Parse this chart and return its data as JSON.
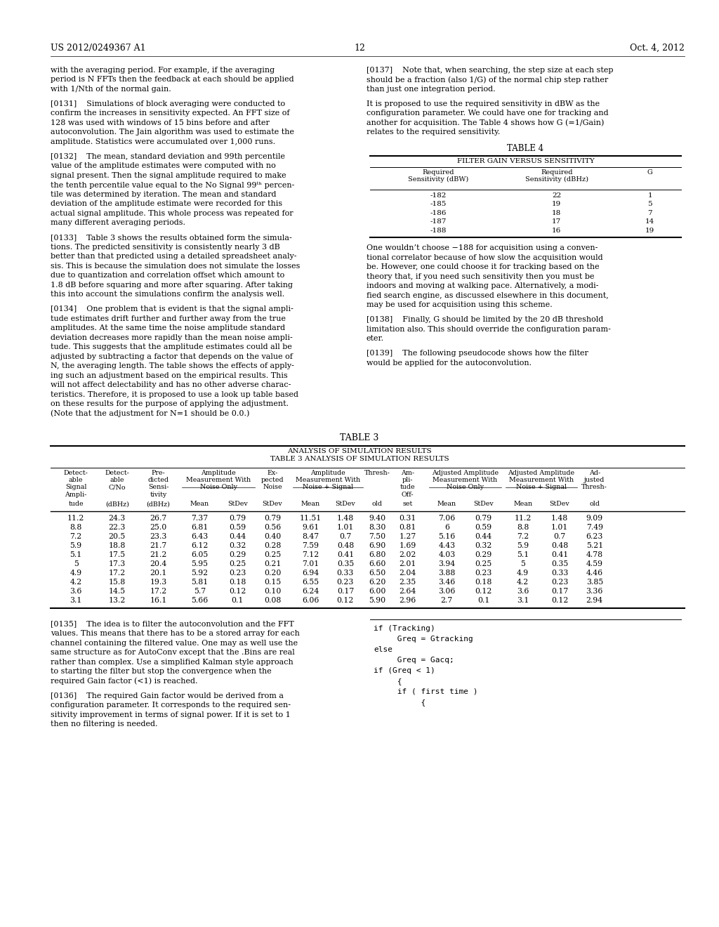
{
  "background_color": "#ffffff",
  "header_left": "US 2012/0249367 A1",
  "header_center": "12",
  "header_right": "Oct. 4, 2012",
  "table4_title": "TABLE 4",
  "table4_subtitle": "FILTER GAIN VERSUS SENSITIVITY",
  "table4_col1_header": "Required\nSensitivity (dBW)",
  "table4_col2_header": "Required\nSensitivity (dBHz)",
  "table4_col3_header": "G",
  "table4_rows": [
    [
      "-182",
      "22",
      "1"
    ],
    [
      "-185",
      "19",
      "5"
    ],
    [
      "-186",
      "18",
      "7"
    ],
    [
      "-187",
      "17",
      "14"
    ],
    [
      "-188",
      "16",
      "19"
    ]
  ],
  "table3_title": "TABLE 3",
  "table3_subtitle1": "ANALYSIS OF SIMULATION RESULTS",
  "table3_subtitle2": "TABLE 3 ANALYSIS OF SIMULATION RESULTS",
  "table3_data": [
    [
      "11.2",
      "24.3",
      "26.7",
      "7.37",
      "0.79",
      "0.79",
      "11.51",
      "1.48",
      "9.40",
      "0.31",
      "7.06",
      "0.79",
      "11.2",
      "1.48",
      "9.09"
    ],
    [
      "8.8",
      "22.3",
      "25.0",
      "6.81",
      "0.59",
      "0.56",
      "9.61",
      "1.01",
      "8.30",
      "0.81",
      "6",
      "0.59",
      "8.8",
      "1.01",
      "7.49"
    ],
    [
      "7.2",
      "20.5",
      "23.3",
      "6.43",
      "0.44",
      "0.40",
      "8.47",
      "0.7",
      "7.50",
      "1.27",
      "5.16",
      "0.44",
      "7.2",
      "0.7",
      "6.23"
    ],
    [
      "5.9",
      "18.8",
      "21.7",
      "6.12",
      "0.32",
      "0.28",
      "7.59",
      "0.48",
      "6.90",
      "1.69",
      "4.43",
      "0.32",
      "5.9",
      "0.48",
      "5.21"
    ],
    [
      "5.1",
      "17.5",
      "21.2",
      "6.05",
      "0.29",
      "0.25",
      "7.12",
      "0.41",
      "6.80",
      "2.02",
      "4.03",
      "0.29",
      "5.1",
      "0.41",
      "4.78"
    ],
    [
      "5",
      "17.3",
      "20.4",
      "5.95",
      "0.25",
      "0.21",
      "7.01",
      "0.35",
      "6.60",
      "2.01",
      "3.94",
      "0.25",
      "5",
      "0.35",
      "4.59"
    ],
    [
      "4.9",
      "17.2",
      "20.1",
      "5.92",
      "0.23",
      "0.20",
      "6.94",
      "0.33",
      "6.50",
      "2.04",
      "3.88",
      "0.23",
      "4.9",
      "0.33",
      "4.46"
    ],
    [
      "4.2",
      "15.8",
      "19.3",
      "5.81",
      "0.18",
      "0.15",
      "6.55",
      "0.23",
      "6.20",
      "2.35",
      "3.46",
      "0.18",
      "4.2",
      "0.23",
      "3.85"
    ],
    [
      "3.6",
      "14.5",
      "17.2",
      "5.7",
      "0.12",
      "0.10",
      "6.24",
      "0.17",
      "6.00",
      "2.64",
      "3.06",
      "0.12",
      "3.6",
      "0.17",
      "3.36"
    ],
    [
      "3.1",
      "13.2",
      "16.1",
      "5.66",
      "0.1",
      "0.08",
      "6.06",
      "0.12",
      "5.90",
      "2.96",
      "2.7",
      "0.1",
      "3.1",
      "0.12",
      "2.94"
    ]
  ],
  "left_col_top": [
    "with the averaging period. For example, if the averaging",
    "period is N FFTs then the feedback at each should be applied",
    "with 1/Nth of the normal gain.",
    "",
    "[0131]    Simulations of block averaging were conducted to",
    "confirm the increases in sensitivity expected. An FFT size of",
    "128 was used with windows of 15 bins before and after",
    "autoconvolution. The Jain algorithm was used to estimate the",
    "amplitude. Statistics were accumulated over 1,000 runs.",
    "",
    "[0132]    The mean, standard deviation and 99th percentile",
    "value of the amplitude estimates were computed with no",
    "signal present. Then the signal amplitude required to make",
    "the tenth percentile value equal to the No Signal 99ᵗʰ percen-",
    "tile was determined by iteration. The mean and standard",
    "deviation of the amplitude estimate were recorded for this",
    "actual signal amplitude. This whole process was repeated for",
    "many different averaging periods.",
    "",
    "[0133]    Table 3 shows the results obtained form the simula-",
    "tions. The predicted sensitivity is consistently nearly 3 dB",
    "better than that predicted using a detailed spreadsheet analy-",
    "sis. This is because the simulation does not simulate the losses",
    "due to quantization and correlation offset which amount to",
    "1.8 dB before squaring and more after squaring. After taking",
    "this into account the simulations confirm the analysis well.",
    "",
    "[0134]    One problem that is evident is that the signal ampli-",
    "tude estimates drift further and further away from the true",
    "amplitudes. At the same time the noise amplitude standard",
    "deviation decreases more rapidly than the mean noise ampli-",
    "tude. This suggests that the amplitude estimates could all be",
    "adjusted by subtracting a factor that depends on the value of",
    "N, the averaging length. The table shows the effects of apply-",
    "ing such an adjustment based on the empirical results. This",
    "will not affect delectability and has no other adverse charac-",
    "teristics. Therefore, it is proposed to use a look up table based",
    "on these results for the purpose of applying the adjustment.",
    "(Note that the adjustment for N=1 should be 0.0.)"
  ],
  "right_col_top": [
    "[0137]    Note that, when searching, the step size at each step",
    "should be a fraction (also 1/G) of the normal chip step rather",
    "than just one integration period.",
    "",
    "It is proposed to use the required sensitivity in dBW as the",
    "configuration parameter. We could have one for tracking and",
    "another for acquisition. The Table 4 shows how G (=1/Gain)",
    "relates to the required sensitivity."
  ],
  "right_col_below_table4": [
    "One wouldn’t choose −188 for acquisition using a conven-",
    "tional correlator because of how slow the acquisition would",
    "be. However, one could choose it for tracking based on the",
    "theory that, if you need such sensitivity then you must be",
    "indoors and moving at walking pace. Alternatively, a modi-",
    "fied search engine, as discussed elsewhere in this document,",
    "may be used for acquisition using this scheme.",
    "",
    "[0138]    Finally, G should be limited by the 20 dB threshold",
    "limitation also. This should override the configuration param-",
    "eter.",
    "",
    "[0139]    The following pseudocode shows how the filter",
    "would be applied for the autoconvolution."
  ],
  "bottom_left": [
    "[0135]    The idea is to filter the autoconvolution and the FFT",
    "values. This means that there has to be a stored array for each",
    "channel containing the filtered value. One may as well use the",
    "same structure as for AutoConv except that the .Bins are real",
    "rather than complex. Use a simplified Kalman style approach",
    "to starting the filter but stop the convergence when the",
    "required Gain factor (<1) is reached.",
    "",
    "[0136]    The required Gain factor would be derived from a",
    "configuration parameter. It corresponds to the required sen-",
    "sitivity improvement in terms of signal power. If it is set to 1",
    "then no filtering is needed."
  ],
  "code_lines": [
    "if (Tracking)",
    "     Greq = Gtracking",
    "else",
    "     Greq = Gacq;",
    "if (Greq < 1)",
    "     {",
    "     if ( first time )",
    "          {"
  ]
}
